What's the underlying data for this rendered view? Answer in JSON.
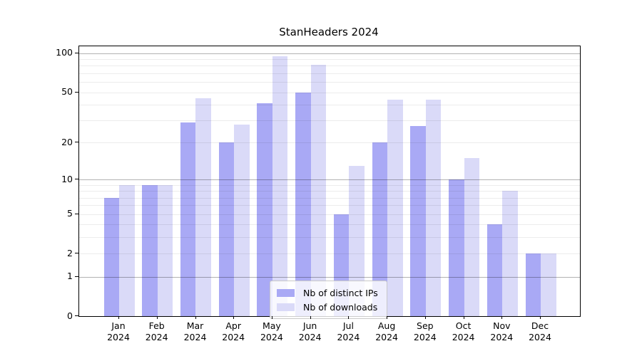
{
  "title": "StanHeaders 2024",
  "chart_data": {
    "type": "bar",
    "title": "StanHeaders 2024",
    "x_axis": {
      "months": [
        "Jan",
        "Feb",
        "Mar",
        "Apr",
        "May",
        "Jun",
        "Jul",
        "Aug",
        "Sep",
        "Oct",
        "Nov",
        "Dec"
      ],
      "year": "2024"
    },
    "series": [
      {
        "name": "Nb of distinct IPs",
        "color": "#a9a9f5",
        "values": [
          7,
          9,
          29,
          20,
          41,
          50,
          5,
          20,
          27,
          10,
          4,
          2
        ]
      },
      {
        "name": "Nb of downloads",
        "color": "#dadaf8",
        "values": [
          9,
          9,
          45,
          28,
          95,
          82,
          13,
          44,
          44,
          15,
          8,
          2
        ]
      }
    ],
    "y_axis": {
      "scale": "log1p",
      "tick_labels": [
        "0",
        "1",
        "2",
        "5",
        "10",
        "20",
        "50",
        "100"
      ],
      "tick_values": [
        0,
        1,
        2,
        5,
        10,
        20,
        50,
        100
      ],
      "major_gridlines": [
        1,
        10,
        100
      ],
      "minor_gridlines": [
        2,
        3,
        4,
        5,
        6,
        7,
        8,
        9,
        20,
        30,
        40,
        50,
        60,
        70,
        80,
        90
      ],
      "ymax": 114
    },
    "legend": {
      "position": "lower center",
      "labels": [
        "Nb of distinct IPs",
        "Nb of downloads"
      ]
    },
    "grid": true
  },
  "colors": {
    "background": "#ffffff",
    "bar_distinct_ips": "#a9a9f5",
    "bar_downloads": "#dadaf8",
    "grid_major": "#b3b3b3",
    "grid_minor": "#e8e8e8",
    "axis": "#000000",
    "legend_border": "#c9c9c9",
    "text": "#000000"
  }
}
